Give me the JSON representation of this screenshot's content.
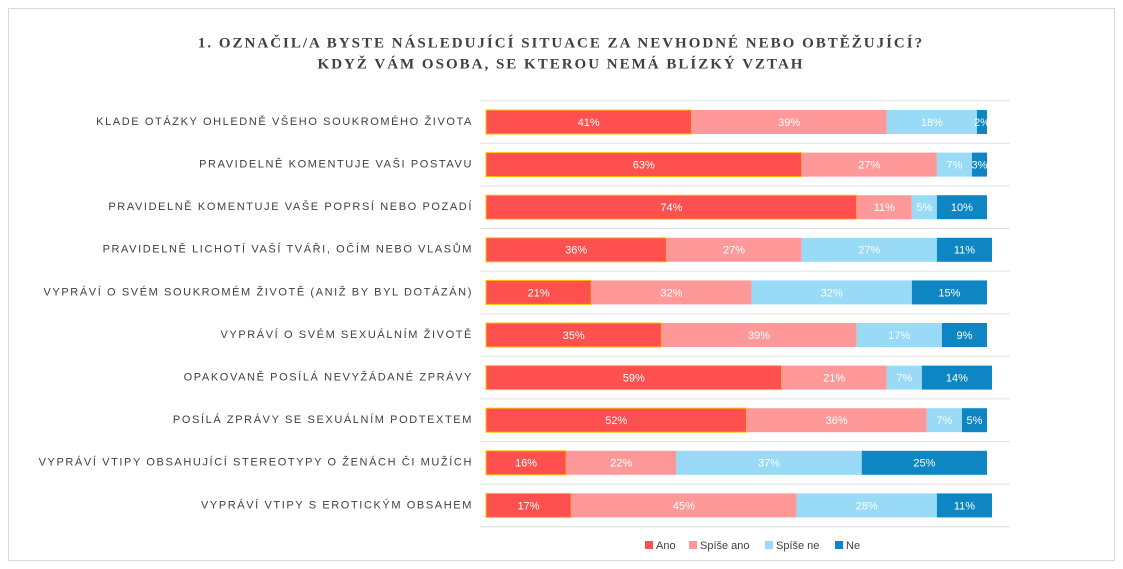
{
  "chart_data": {
    "type": "stacked_bar_horizontal",
    "title": "1. OZNAČIL/A BYSTE NÁSLEDUJÍCÍ SITUACE ZA NEVHODNÉ NEBO OBTĚŽUJÍCÍ?",
    "subtitle": "KDYŽ VÁM OSOBA, SE KTEROU NEMÁ BLÍZKÝ VZTAH",
    "categories": [
      "KLADE OTÁZKY OHLEDNĚ VŠEHO SOUKROMÉHO ŽIVOTA",
      "PRAVIDELNĚ KOMENTUJE VAŠI POSTAVU",
      "PRAVIDELNĚ KOMENTUJE VAŠE POPRSÍ NEBO POZADÍ",
      "PRAVIDELNĚ LICHOTÍ VAŠÍ TVÁŘI, OČÍM NEBO VLASŮM",
      "VYPRÁVÍ O SVÉM SOUKROMÉM ŽIVOTĚ (ANIŽ BY BYL DOTÁZÁN)",
      "VYPRÁVÍ O SVÉM SEXUÁLNÍM ŽIVOTĚ",
      "OPAKOVANĚ POSÍLÁ NEVYŽÁDANÉ ZPRÁVY",
      "POSÍLÁ ZPRÁVY SE SEXUÁLNÍM PODTEXTEM",
      "VYPRÁVÍ VTIPY OBSAHUJÍCÍ STEREOTYPY O ŽENÁCH ČI MUŽÍCH",
      "VYPRÁVÍ VTIPY S EROTICKÝM OBSAHEM"
    ],
    "xlim": [
      0,
      100
    ],
    "series": [
      {
        "name": "Ano",
        "color": "#ff5050",
        "values": [
          41,
          63,
          74,
          36,
          21,
          35,
          59,
          52,
          16,
          17
        ],
        "value_labels": [
          "41%",
          "63%",
          "74%",
          "36%",
          "21%",
          "35%",
          "59%",
          "52%",
          "16%",
          "17%"
        ]
      },
      {
        "name": "Spíše ano",
        "color": "#ff9999",
        "values": [
          39,
          27,
          11,
          27,
          32,
          39,
          21,
          36,
          22,
          45
        ],
        "value_labels": [
          "39%",
          "27%",
          "11%",
          "27%",
          "32%",
          "39%",
          "21%",
          "36%",
          "22%",
          "45%"
        ]
      },
      {
        "name": "Spíše ne",
        "color": "#99daf7",
        "values": [
          18,
          7,
          5,
          27,
          32,
          17,
          7,
          7,
          37,
          28
        ],
        "value_labels": [
          "18%",
          "7%",
          "5%",
          "27%",
          "32%",
          "17%",
          "7%",
          "7%",
          "37%",
          "28%"
        ]
      },
      {
        "name": "Ne",
        "color": "#0f86c4",
        "values": [
          2,
          3,
          10,
          11,
          15,
          9,
          14,
          5,
          25,
          11
        ],
        "value_labels": [
          "2%",
          "3%",
          "10%",
          "11%",
          "15%",
          "9%",
          "14%",
          "5%",
          "25%",
          "11%"
        ]
      }
    ],
    "legend": "bottom"
  }
}
